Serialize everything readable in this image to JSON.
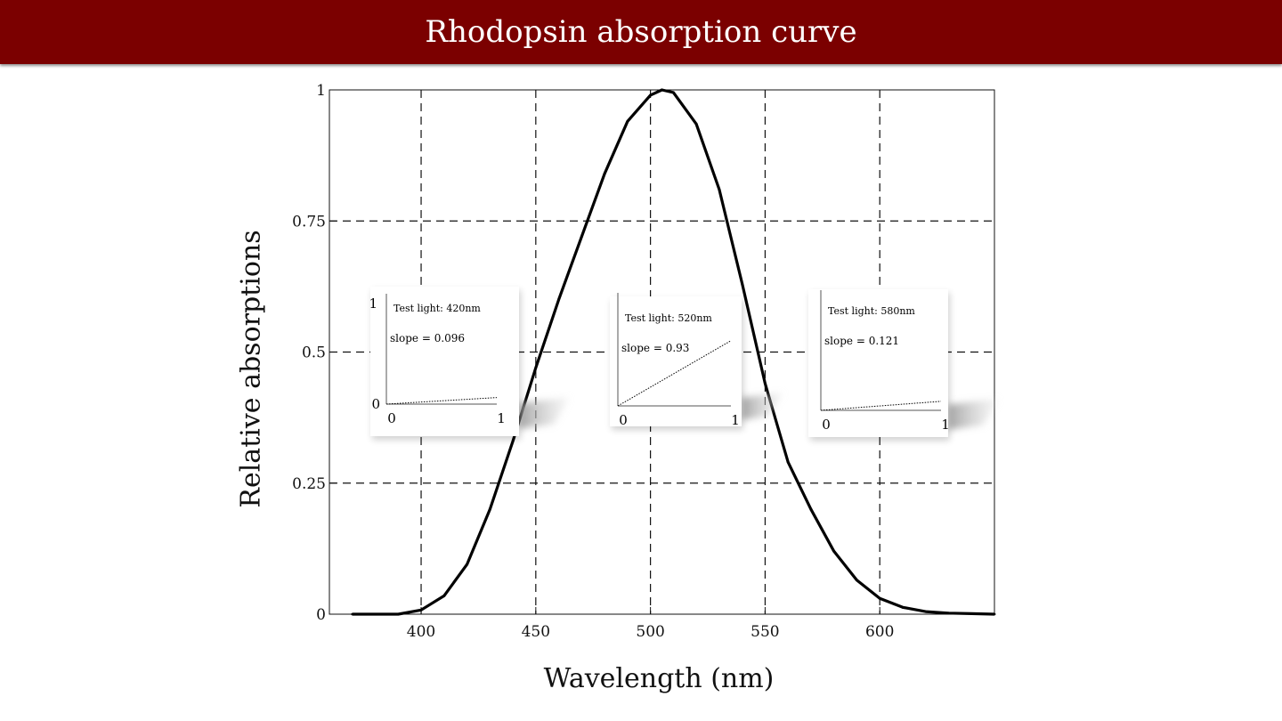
{
  "header": {
    "title": "Rhodopsin absorption curve"
  },
  "chart_data": {
    "type": "line",
    "xlabel": "Wavelength (nm)",
    "ylabel": "Relative absorptions",
    "xlim": [
      360,
      650
    ],
    "ylim": [
      0,
      1
    ],
    "xticks": [
      400,
      450,
      500,
      550,
      600
    ],
    "yticks": [
      0,
      0.25,
      0.5,
      0.75,
      1
    ],
    "ytick_labels": [
      "0",
      "0.25",
      "0.5",
      "0.75",
      "1"
    ],
    "grid": true,
    "grid_style": "dashed",
    "series": [
      {
        "x": [
          370,
          380,
          390,
          400,
          410,
          420,
          430,
          440,
          450,
          460,
          470,
          480,
          490,
          500,
          505,
          510,
          520,
          530,
          540,
          550,
          560,
          570,
          580,
          590,
          600,
          610,
          620,
          630,
          640,
          650
        ],
        "y": [
          0.0,
          0.0,
          0.0,
          0.008,
          0.035,
          0.095,
          0.2,
          0.33,
          0.47,
          0.6,
          0.72,
          0.84,
          0.94,
          0.99,
          1.0,
          0.995,
          0.935,
          0.81,
          0.63,
          0.44,
          0.29,
          0.2,
          0.12,
          0.065,
          0.03,
          0.013,
          0.005,
          0.002,
          0.001,
          0.0
        ],
        "color": "#000000"
      }
    ],
    "insets": [
      {
        "title": "Test light: 420nm",
        "slope_label": "slope = 0.096",
        "slope": 0.096,
        "y_top_label": "1",
        "y_bottom_label": "0",
        "x_left_label": "0",
        "x_right_label": "1"
      },
      {
        "title": "Test light: 520nm",
        "slope_label": "slope = 0.93",
        "slope": 0.93,
        "y_top_label": "",
        "y_bottom_label": "",
        "x_left_label": "0",
        "x_right_label": "1"
      },
      {
        "title": "Test light: 580nm",
        "slope_label": "slope = 0.121",
        "slope": 0.121,
        "y_top_label": "",
        "y_bottom_label": "",
        "x_left_label": "0",
        "x_right_label": "1"
      }
    ]
  }
}
